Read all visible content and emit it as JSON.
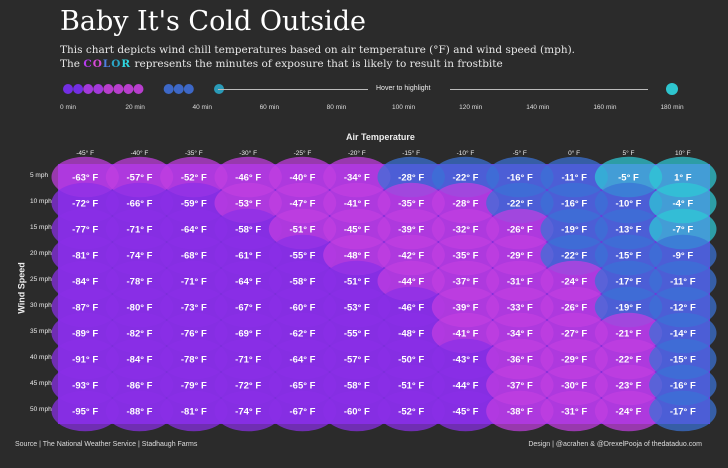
{
  "title": "Baby It's Cold Outside",
  "subtitle_line1": "This chart depicts wind chill temperatures based on air temperature (°F) and wind speed (mph).",
  "subtitle_line2_prefix": "The ",
  "subtitle_color_word": "COLOR",
  "subtitle_line2_suffix": " represents the minutes of exposure that is likely to result in frostbite",
  "legend": {
    "hover_label": "Hover to highlight",
    "ticks": [
      "0 min",
      "20 min",
      "40 min",
      "60 min",
      "80 min",
      "100 min",
      "120 min",
      "140 min",
      "160 min",
      "180 min"
    ],
    "colors": [
      "#7b2ff7",
      "#b03bf0",
      "#c840e0",
      "#3f6fd8",
      "#2aa7c8",
      "#2fd6e0"
    ]
  },
  "footer": {
    "source": "Source | The National Weather Service | Stadhaugh Farms",
    "design": "Design | @acrahen & @DrexelPooja of thedataduo.com"
  },
  "chart_data": {
    "type": "heatmap",
    "title": "Baby It's Cold Outside",
    "xlabel": "Air Temperature",
    "ylabel": "Wind Speed",
    "x": [
      "-45° F",
      "-40° F",
      "-35° F",
      "-30° F",
      "-25° F",
      "-20° F",
      "-15° F",
      "-10° F",
      "-5° F",
      "0° F",
      "5° F",
      "10° F"
    ],
    "y": [
      "5 mph",
      "10 mph",
      "15 mph",
      "20 mph",
      "25 mph",
      "30 mph",
      "35 mph",
      "40 mph",
      "45 mph",
      "50 mph"
    ],
    "values": [
      [
        "-63° F",
        "-57° F",
        "-52° F",
        "-46° F",
        "-40° F",
        "-34° F",
        "-28° F",
        "-22° F",
        "-16° F",
        "-11° F",
        "-5° F",
        "1° F"
      ],
      [
        "-72° F",
        "-66° F",
        "-59° F",
        "-53° F",
        "-47° F",
        "-41° F",
        "-35° F",
        "-28° F",
        "-22° F",
        "-16° F",
        "-10° F",
        "-4° F"
      ],
      [
        "-77° F",
        "-71° F",
        "-64° F",
        "-58° F",
        "-51° F",
        "-45° F",
        "-39° F",
        "-32° F",
        "-26° F",
        "-19° F",
        "-13° F",
        "-7° F"
      ],
      [
        "-81° F",
        "-74° F",
        "-68° F",
        "-61° F",
        "-55° F",
        "-48° F",
        "-42° F",
        "-35° F",
        "-29° F",
        "-22° F",
        "-15° F",
        "-9° F"
      ],
      [
        "-84° F",
        "-78° F",
        "-71° F",
        "-64° F",
        "-58° F",
        "-51° F",
        "-44° F",
        "-37° F",
        "-31° F",
        "-24° F",
        "-17° F",
        "-11° F"
      ],
      [
        "-87° F",
        "-80° F",
        "-73° F",
        "-67° F",
        "-60° F",
        "-53° F",
        "-46° F",
        "-39° F",
        "-33° F",
        "-26° F",
        "-19° F",
        "-12° F"
      ],
      [
        "-89° F",
        "-82° F",
        "-76° F",
        "-69° F",
        "-62° F",
        "-55° F",
        "-48° F",
        "-41° F",
        "-34° F",
        "-27° F",
        "-21° F",
        "-14° F"
      ],
      [
        "-91° F",
        "-84° F",
        "-78° F",
        "-71° F",
        "-64° F",
        "-57° F",
        "-50° F",
        "-43° F",
        "-36° F",
        "-29° F",
        "-22° F",
        "-15° F"
      ],
      [
        "-93° F",
        "-86° F",
        "-79° F",
        "-72° F",
        "-65° F",
        "-58° F",
        "-51° F",
        "-44° F",
        "-37° F",
        "-30° F",
        "-23° F",
        "-16° F"
      ],
      [
        "-95° F",
        "-88° F",
        "-81° F",
        "-74° F",
        "-67° F",
        "-60° F",
        "-52° F",
        "-45° F",
        "-38° F",
        "-31° F",
        "-24° F",
        "-17° F"
      ]
    ],
    "frostbite_minutes": [
      [
        10,
        10,
        10,
        10,
        10,
        10,
        30,
        30,
        30,
        30,
        180,
        180
      ],
      [
        5,
        5,
        5,
        10,
        10,
        10,
        10,
        10,
        30,
        30,
        30,
        180
      ],
      [
        5,
        5,
        5,
        5,
        10,
        10,
        10,
        10,
        10,
        30,
        30,
        180
      ],
      [
        5,
        5,
        5,
        5,
        5,
        10,
        10,
        10,
        10,
        30,
        30,
        30
      ],
      [
        5,
        5,
        5,
        5,
        5,
        5,
        10,
        10,
        10,
        10,
        30,
        30
      ],
      [
        5,
        5,
        5,
        5,
        5,
        5,
        5,
        10,
        10,
        10,
        30,
        30
      ],
      [
        5,
        5,
        5,
        5,
        5,
        5,
        5,
        10,
        10,
        10,
        10,
        30
      ],
      [
        5,
        5,
        5,
        5,
        5,
        5,
        5,
        5,
        10,
        10,
        10,
        30
      ],
      [
        5,
        5,
        5,
        5,
        5,
        5,
        5,
        5,
        10,
        10,
        10,
        30
      ],
      [
        5,
        5,
        5,
        5,
        5,
        5,
        5,
        5,
        10,
        10,
        10,
        30
      ]
    ],
    "legend_range": [
      0,
      180
    ]
  }
}
